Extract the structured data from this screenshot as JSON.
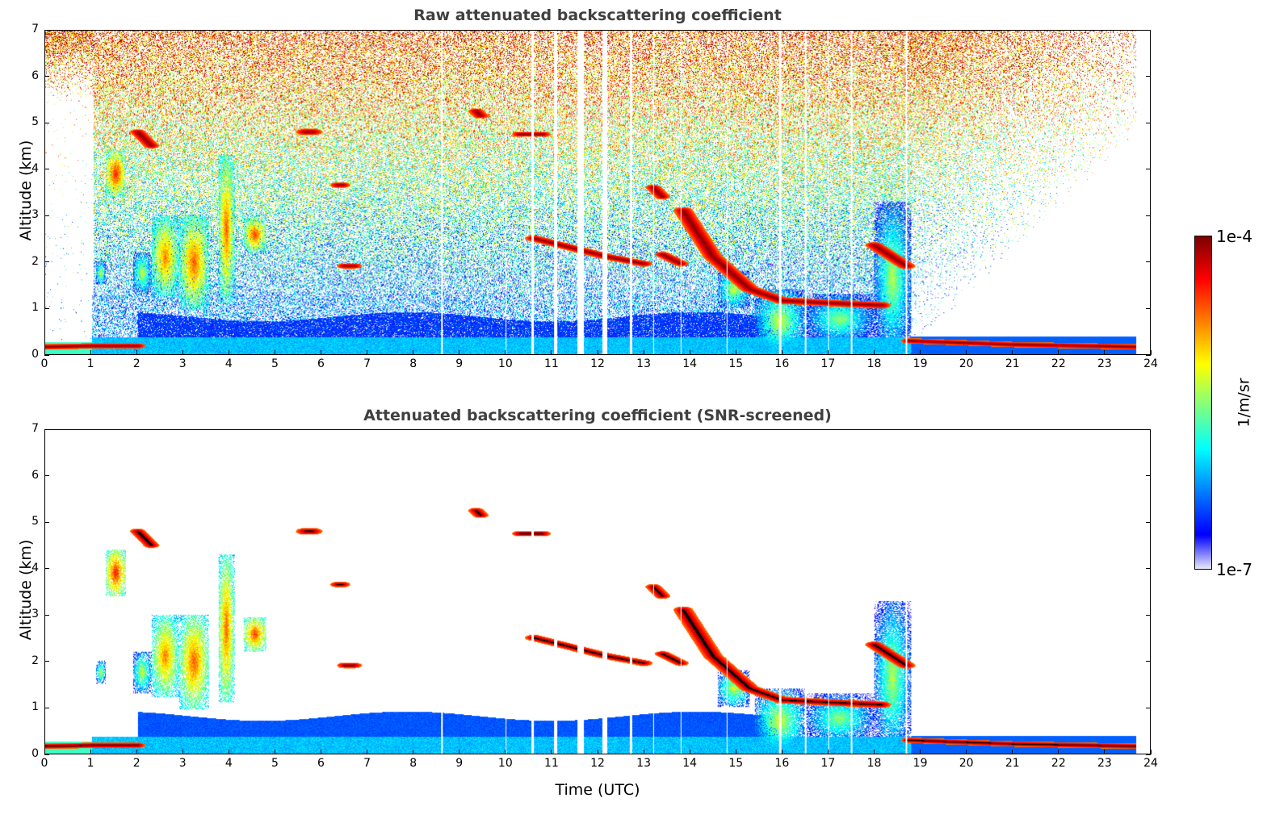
{
  "chart_data": {
    "type": "heatmap",
    "colorbar": {
      "min_label": "1e-7",
      "max_label": "1e-4",
      "label": "1/m/sr",
      "scale": "log",
      "range": [
        1e-07,
        0.0001
      ]
    },
    "panels": [
      {
        "title": "Raw attenuated backscattering coefficient",
        "ylabel": "Altitude (km)",
        "xlabel": "",
        "screened": false
      },
      {
        "title": "Attenuated backscattering coefficient (SNR-screened)",
        "ylabel": "Altitude (km)",
        "xlabel": "Time (UTC)",
        "screened": true
      }
    ],
    "xlim": [
      0,
      24
    ],
    "ylim": [
      0,
      7
    ],
    "xticks": [
      "0",
      "1",
      "2",
      "3",
      "4",
      "5",
      "6",
      "7",
      "8",
      "9",
      "10",
      "11",
      "12",
      "13",
      "14",
      "15",
      "16",
      "17",
      "18",
      "19",
      "20",
      "21",
      "22",
      "23",
      "24"
    ],
    "yticks": [
      "0",
      "1",
      "2",
      "3",
      "4",
      "5",
      "6",
      "7"
    ],
    "data_end_time": 23.7,
    "data_gaps_utc": [
      [
        8.6,
        8.62
      ],
      [
        10.0,
        10.02
      ],
      [
        10.55,
        10.6
      ],
      [
        11.05,
        11.12
      ],
      [
        11.55,
        11.7
      ],
      [
        12.1,
        12.2
      ],
      [
        12.7,
        12.75
      ],
      [
        13.2,
        13.22
      ],
      [
        13.8,
        13.82
      ],
      [
        14.8,
        14.82
      ],
      [
        15.93,
        15.98
      ],
      [
        16.5,
        16.52
      ],
      [
        17.0,
        17.02
      ],
      [
        17.5,
        17.52
      ],
      [
        18.68,
        18.72
      ]
    ],
    "boundary_layer": {
      "time": [
        2,
        15.5
      ],
      "top_km": 0.8,
      "log10_value": -6.4
    },
    "features": [
      {
        "kind": "box",
        "t": [
          1.3,
          1.75
        ],
        "alt": [
          3.4,
          4.4
        ],
        "log10_value": -4.8
      },
      {
        "kind": "box",
        "t": [
          1.1,
          1.3
        ],
        "alt": [
          1.5,
          2.0
        ],
        "log10_value": -5.6
      },
      {
        "kind": "box",
        "t": [
          1.9,
          2.3
        ],
        "alt": [
          1.3,
          2.2
        ],
        "log10_value": -5.6
      },
      {
        "kind": "box",
        "t": [
          2.3,
          2.9
        ],
        "alt": [
          1.2,
          3.0
        ],
        "log10_value": -5.1
      },
      {
        "kind": "box",
        "t": [
          2.9,
          3.55
        ],
        "alt": [
          0.95,
          3.0
        ],
        "log10_value": -5.0
      },
      {
        "kind": "box",
        "t": [
          3.75,
          4.1
        ],
        "alt": [
          1.1,
          4.3
        ],
        "log10_value": -5.0
      },
      {
        "kind": "box",
        "t": [
          4.3,
          4.8
        ],
        "alt": [
          2.2,
          2.95
        ],
        "log10_value": -4.9
      },
      {
        "kind": "box",
        "t": [
          15.4,
          16.5
        ],
        "alt": [
          0.0,
          1.4
        ],
        "log10_value": -5.6
      },
      {
        "kind": "box",
        "t": [
          16.5,
          18.0
        ],
        "alt": [
          0.2,
          1.3
        ],
        "log10_value": -5.8
      },
      {
        "kind": "box",
        "t": [
          18.0,
          18.8
        ],
        "alt": [
          0.0,
          3.3
        ],
        "log10_value": -5.7
      },
      {
        "kind": "box",
        "t": [
          14.6,
          15.3
        ],
        "alt": [
          1.0,
          1.8
        ],
        "log10_value": -5.6
      },
      {
        "kind": "line",
        "points": [
          [
            0.0,
            0.15
          ],
          [
            1.0,
            0.17
          ],
          [
            2.0,
            0.17
          ]
        ],
        "thickness": 0.12,
        "log10_value": -4.0
      },
      {
        "kind": "line",
        "points": [
          [
            18.75,
            0.28
          ],
          [
            21,
            0.2
          ],
          [
            23.7,
            0.15
          ]
        ],
        "thickness": 0.12,
        "log10_value": -4.0
      },
      {
        "kind": "line",
        "points": [
          [
            2.0,
            4.8
          ],
          [
            2.3,
            4.5
          ]
        ],
        "thickness": 0.12,
        "log10_value": -4.0
      },
      {
        "kind": "line",
        "points": [
          [
            5.65,
            4.8
          ],
          [
            5.8,
            4.8
          ]
        ],
        "thickness": 0.15,
        "log10_value": -4.0
      },
      {
        "kind": "line",
        "points": [
          [
            6.35,
            3.65
          ],
          [
            6.45,
            3.65
          ]
        ],
        "thickness": 0.12,
        "log10_value": -4.0
      },
      {
        "kind": "line",
        "points": [
          [
            6.5,
            1.9
          ],
          [
            6.7,
            1.9
          ]
        ],
        "thickness": 0.12,
        "log10_value": -4.0
      },
      {
        "kind": "line",
        "points": [
          [
            9.35,
            5.25
          ],
          [
            9.45,
            5.15
          ]
        ],
        "thickness": 0.12,
        "log10_value": -4.0
      },
      {
        "kind": "line",
        "points": [
          [
            10.3,
            4.75
          ],
          [
            10.8,
            4.75
          ]
        ],
        "thickness": 0.12,
        "log10_value": -4.0
      },
      {
        "kind": "line",
        "points": [
          [
            10.6,
            2.5
          ],
          [
            12.2,
            2.1
          ],
          [
            13.0,
            1.95
          ]
        ],
        "thickness": 0.13,
        "log10_value": -4.0
      },
      {
        "kind": "line",
        "points": [
          [
            13.2,
            3.6
          ],
          [
            13.4,
            3.4
          ]
        ],
        "thickness": 0.12,
        "log10_value": -4.0
      },
      {
        "kind": "line",
        "points": [
          [
            13.4,
            2.15
          ],
          [
            13.8,
            1.95
          ]
        ],
        "thickness": 0.12,
        "log10_value": -4.0
      },
      {
        "kind": "line",
        "points": [
          [
            13.85,
            3.1
          ],
          [
            14.5,
            2.1
          ],
          [
            15.3,
            1.4
          ],
          [
            16.0,
            1.15
          ],
          [
            17.0,
            1.1
          ],
          [
            18.15,
            1.05
          ]
        ],
        "thickness": 0.15,
        "log10_value": -4.0
      },
      {
        "kind": "line",
        "points": [
          [
            18.0,
            2.35
          ],
          [
            18.7,
            1.9
          ]
        ],
        "thickness": 0.14,
        "log10_value": -4.0
      }
    ]
  }
}
